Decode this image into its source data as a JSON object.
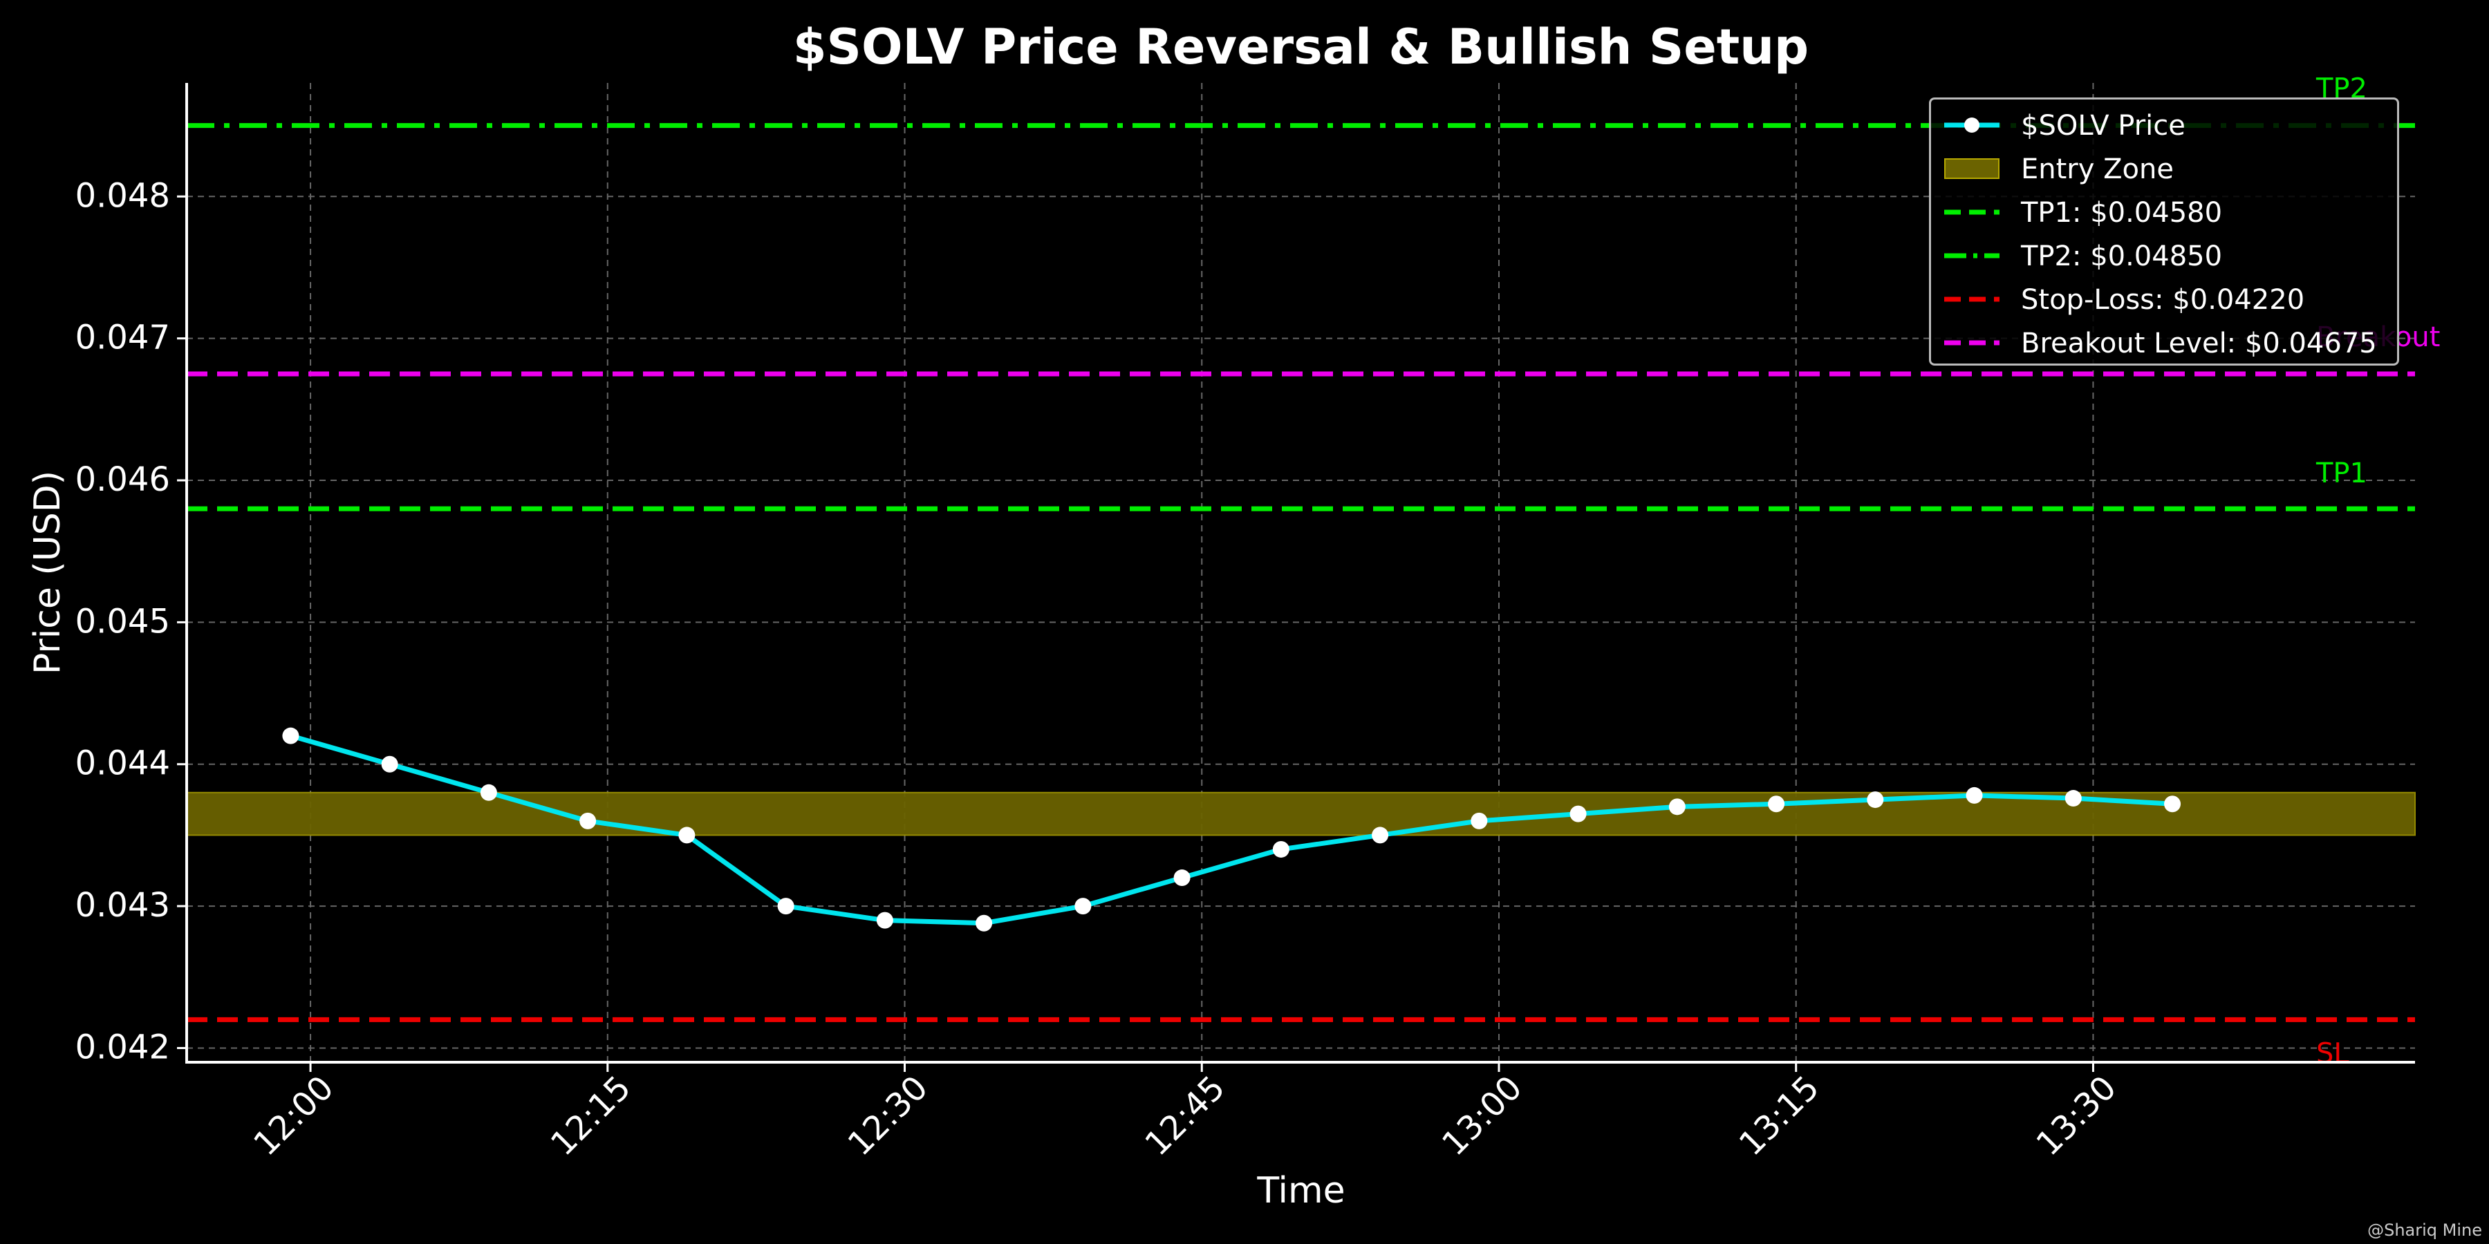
{
  "chart_data": {
    "type": "line",
    "title": "$SOLV Price Reversal & Bullish Setup",
    "xlabel": "Time",
    "ylabel": "Price (USD)",
    "x_ticks": [
      "12:00",
      "12:15",
      "12:30",
      "12:45",
      "13:00",
      "13:15",
      "13:30"
    ],
    "y_ticks": [
      "0.042",
      "0.043",
      "0.044",
      "0.045",
      "0.046",
      "0.047",
      "0.048"
    ],
    "xlim": [
      "11:53:45",
      "13:46:15"
    ],
    "ylim": [
      0.0419,
      0.0488
    ],
    "grid": true,
    "legend_position": "top-right",
    "series": [
      {
        "name": "$SOLV Price",
        "color": "#00e5ee",
        "x": [
          "11:59",
          "12:04",
          "12:09",
          "12:14",
          "12:19",
          "12:24",
          "12:29",
          "12:34",
          "12:39",
          "12:44",
          "12:49",
          "12:54",
          "12:59",
          "13:04",
          "13:09",
          "13:14",
          "13:19",
          "13:24",
          "13:29",
          "13:34"
        ],
        "values": [
          0.0442,
          0.044,
          0.0438,
          0.0436,
          0.0435,
          0.043,
          0.0429,
          0.04288,
          0.043,
          0.0432,
          0.0434,
          0.0435,
          0.0436,
          0.04365,
          0.0437,
          0.04372,
          0.04375,
          0.04378,
          0.04376,
          0.04372
        ]
      }
    ],
    "bands": [
      {
        "name": "Entry Zone",
        "y0": 0.0435,
        "y1": 0.0438,
        "color": "#6b6300"
      }
    ],
    "hlines": [
      {
        "legend": "TP1: $0.04580",
        "label": "TP1",
        "y": 0.0458,
        "color": "#00ee00",
        "style": "dashed"
      },
      {
        "legend": "TP2: $0.04850",
        "label": "TP2",
        "y": 0.0485,
        "color": "#00ee00",
        "style": "dashdot"
      },
      {
        "legend": "Stop-Loss: $0.04220",
        "label": "SL",
        "y": 0.0422,
        "color": "#ee0000",
        "style": "dashed"
      },
      {
        "legend": "Breakout Level: $0.04675",
        "label": "Breakout",
        "y": 0.04675,
        "color": "#ee00ee",
        "style": "dashed"
      }
    ]
  },
  "watermark": "@Shariq Mine"
}
